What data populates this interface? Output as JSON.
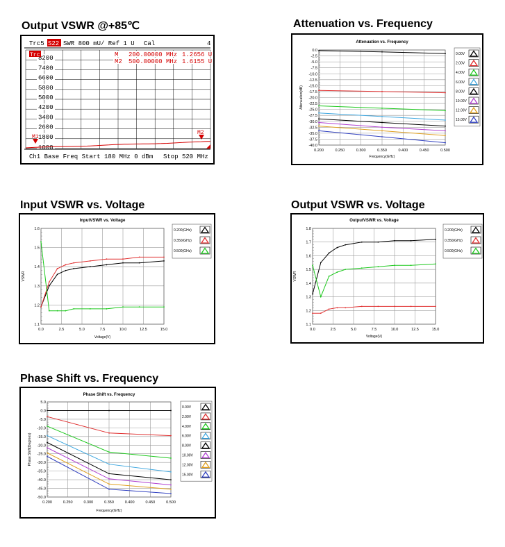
{
  "vna": {
    "title": "Output VSWR @+85℃",
    "header": {
      "trace": "Trc5",
      "param": "S22",
      "rest": "SWR  800 mU/  Ref 1 U",
      "cal": "Cal",
      "num": "4"
    },
    "trc_marker": "Trc",
    "markers": [
      {
        "name": "M",
        "freq": "200.00000 MHz",
        "val": "1.2656 U"
      },
      {
        "name": "M2",
        "freq": "500.00000 MHz",
        "val": "1.6155 U"
      }
    ],
    "ytick_labels": [
      "8200",
      "7400",
      "6600",
      "5800",
      "5000",
      "4200",
      "3400",
      "2600",
      "1800",
      "1000"
    ],
    "marker_labels": [
      "M1",
      "M2"
    ],
    "footer_left": "Ch1  Base Freq  Start  180 MHz  0 dBm",
    "footer_right": "Stop  520 MHz",
    "colors": {
      "trace": "#d40000",
      "grid": "#000000"
    }
  },
  "charts": [
    {
      "id": "attenuation",
      "title": "Attenuation vs. Frequency",
      "chart_data": {
        "type": "line",
        "title": "Attenuation vs. Frequency",
        "xlabel": "Frequency(GHz)",
        "ylabel": "Attenuation(dB)",
        "xlim": [
          0.2,
          0.5
        ],
        "ylim": [
          -40,
          0
        ],
        "xticks": [
          0.2,
          0.25,
          0.3,
          0.35,
          0.4,
          0.45,
          0.5
        ],
        "xtick_labels": [
          "0.200",
          "0.250",
          "0.300",
          "0.350",
          "0.400",
          "0.450",
          "0.500"
        ],
        "yticks": [
          0,
          -2.5,
          -5,
          -7.5,
          -10,
          -12.5,
          -15,
          -17.5,
          -20,
          -22.5,
          -25,
          -27.5,
          -30,
          -32.5,
          -35,
          -37.5,
          -40
        ],
        "ytick_labels": [
          "0.0",
          "-2.5",
          "-5.0",
          "-7.5",
          "-10.0",
          "-12.5",
          "-15.0",
          "-17.5",
          "-20.0",
          "-22.5",
          "-25.0",
          "-27.5",
          "-30.0",
          "-32.5",
          "-35.0",
          "-37.5",
          "-40.0"
        ],
        "x": [
          0.2,
          0.35,
          0.5
        ],
        "grid": true,
        "legend": "right",
        "series": [
          {
            "name": "0.00V",
            "color": "#000000",
            "values": [
              -0.3,
              -0.8,
              -1.5
            ]
          },
          {
            "name": "2.00V",
            "color": "#e03030",
            "values": [
              -17.0,
              -17.5,
              -18.0
            ]
          },
          {
            "name": "4.00V",
            "color": "#1dc81d",
            "values": [
              -23.5,
              -24.5,
              -25.5
            ]
          },
          {
            "name": "6.00V",
            "color": "#40a8e0",
            "values": [
              -26.5,
              -28.0,
              -29.5
            ]
          },
          {
            "name": "8.00V",
            "color": "#000000",
            "values": [
              -29.0,
              -30.5,
              -32.0
            ]
          },
          {
            "name": "10.00V",
            "color": "#b040d0",
            "values": [
              -30.5,
              -32.5,
              -34.0
            ]
          },
          {
            "name": "12.00V",
            "color": "#e0a020",
            "values": [
              -32.0,
              -34.0,
              -36.0
            ]
          },
          {
            "name": "15.00V",
            "color": "#3040c0",
            "values": [
              -34.0,
              -36.5,
              -39.0
            ]
          }
        ]
      }
    },
    {
      "id": "input-vswr",
      "title": "Input VSWR vs. Voltage",
      "chart_data": {
        "type": "line",
        "title": "InputVSWR vs. Voltage",
        "xlabel": "Voltage(V)",
        "ylabel": "VSWR",
        "xlim": [
          0,
          15
        ],
        "ylim": [
          1.1,
          1.6
        ],
        "xticks": [
          0,
          2.5,
          5,
          7.5,
          10,
          12.5,
          15
        ],
        "xtick_labels": [
          "0.0",
          "2.5",
          "5.0",
          "7.5",
          "10.0",
          "12.5",
          "15.0"
        ],
        "yticks": [
          1.1,
          1.2,
          1.3,
          1.4,
          1.5,
          1.6
        ],
        "ytick_labels": [
          "1.1",
          "1.2",
          "1.3",
          "1.4",
          "1.5",
          "1.6"
        ],
        "x": [
          0,
          1,
          2,
          3,
          4,
          6,
          8,
          10,
          12,
          15
        ],
        "grid": true,
        "legend": "right",
        "series": [
          {
            "name": "0.200(GHz)",
            "color": "#000000",
            "values": [
              1.19,
              1.3,
              1.36,
              1.38,
              1.39,
              1.4,
              1.41,
              1.42,
              1.42,
              1.43
            ]
          },
          {
            "name": "0.350(GHz)",
            "color": "#e03030",
            "values": [
              1.19,
              1.32,
              1.39,
              1.41,
              1.42,
              1.43,
              1.44,
              1.44,
              1.45,
              1.45
            ]
          },
          {
            "name": "0.500(GHz)",
            "color": "#1dc81d",
            "values": [
              1.53,
              1.17,
              1.17,
              1.17,
              1.18,
              1.18,
              1.18,
              1.19,
              1.19,
              1.19
            ]
          }
        ]
      }
    },
    {
      "id": "output-vswr",
      "title": "Output VSWR vs. Voltage",
      "chart_data": {
        "type": "line",
        "title": "OutputVSWR vs. Voltage",
        "xlabel": "Voltage(V)",
        "ylabel": "VSWR",
        "xlim": [
          0,
          15
        ],
        "ylim": [
          1.1,
          1.8
        ],
        "xticks": [
          0,
          2.5,
          5,
          7.5,
          10,
          12.5,
          15
        ],
        "xtick_labels": [
          "0.0",
          "2.5",
          "5.0",
          "7.5",
          "10.0",
          "12.5",
          "15.0"
        ],
        "yticks": [
          1.1,
          1.2,
          1.3,
          1.4,
          1.5,
          1.6,
          1.7,
          1.8
        ],
        "ytick_labels": [
          "1.1",
          "1.2",
          "1.3",
          "1.4",
          "1.5",
          "1.6",
          "1.7",
          "1.8"
        ],
        "x": [
          0,
          1,
          2,
          3,
          4,
          6,
          8,
          10,
          12,
          15
        ],
        "grid": true,
        "legend": "right",
        "series": [
          {
            "name": "0.200(GHz)",
            "color": "#000000",
            "values": [
              1.32,
              1.55,
              1.62,
              1.66,
              1.68,
              1.7,
              1.7,
              1.71,
              1.71,
              1.72
            ]
          },
          {
            "name": "0.350(GHz)",
            "color": "#e03030",
            "values": [
              1.18,
              1.18,
              1.21,
              1.22,
              1.22,
              1.23,
              1.23,
              1.23,
              1.23,
              1.23
            ]
          },
          {
            "name": "0.500(GHz)",
            "color": "#1dc81d",
            "values": [
              1.53,
              1.3,
              1.45,
              1.48,
              1.5,
              1.51,
              1.52,
              1.53,
              1.53,
              1.54
            ]
          }
        ]
      }
    },
    {
      "id": "phase-shift",
      "title": "Phase Shift vs. Frequency",
      "chart_data": {
        "type": "line",
        "title": "Phase Shift vs. Frequency",
        "xlabel": "Frequency(GHz)",
        "ylabel": "Phase Shift(Degrees)",
        "xlim": [
          0.2,
          0.5
        ],
        "ylim": [
          -50,
          5
        ],
        "xticks": [
          0.2,
          0.25,
          0.3,
          0.35,
          0.4,
          0.45,
          0.5
        ],
        "xtick_labels": [
          "0.200",
          "0.250",
          "0.300",
          "0.350",
          "0.400",
          "0.450",
          "0.500"
        ],
        "yticks": [
          5,
          0,
          -5,
          -10,
          -15,
          -20,
          -25,
          -30,
          -35,
          -40,
          -45,
          -50
        ],
        "ytick_labels": [
          "5.0",
          "0.0",
          "-5.0",
          "-10.0",
          "-15.0",
          "-20.0",
          "-25.0",
          "-30.0",
          "-35.0",
          "-40.0",
          "-45.0",
          "-50.0"
        ],
        "x": [
          0.2,
          0.35,
          0.5
        ],
        "grid": true,
        "legend": "right",
        "series": [
          {
            "name": "0.00V",
            "color": "#000000",
            "values": [
              0,
              0,
              0
            ]
          },
          {
            "name": "2.00V",
            "color": "#e03030",
            "values": [
              -3.5,
              -13,
              -14.5
            ]
          },
          {
            "name": "4.00V",
            "color": "#1dc81d",
            "values": [
              -9,
              -24,
              -27.5
            ]
          },
          {
            "name": "6.00V",
            "color": "#40a8e0",
            "values": [
              -14.5,
              -31,
              -35.5
            ]
          },
          {
            "name": "8.00V",
            "color": "#000000",
            "values": [
              -18.5,
              -36.5,
              -40
            ]
          },
          {
            "name": "10.00V",
            "color": "#b040d0",
            "values": [
              -21.5,
              -39.5,
              -43
            ]
          },
          {
            "name": "12.00V",
            "color": "#e0a020",
            "values": [
              -24.5,
              -42.5,
              -45.5
            ]
          },
          {
            "name": "15.00V",
            "color": "#3040c0",
            "values": [
              -26.5,
              -45.5,
              -48
            ]
          }
        ]
      }
    }
  ]
}
